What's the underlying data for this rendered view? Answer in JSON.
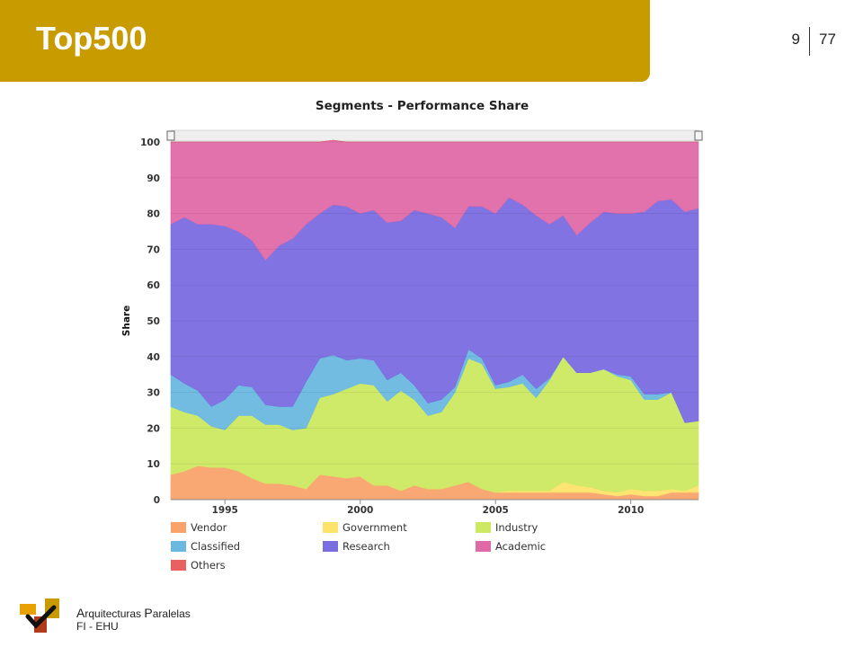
{
  "slide": {
    "title": "Top500",
    "number": "9",
    "total": "77"
  },
  "footer": {
    "line1_cap1": "A",
    "line1_rest1": "rquitecturas ",
    "line1_cap2": "P",
    "line1_rest2": "aralelas",
    "line2": "FI - EHU"
  },
  "chart_data": {
    "type": "area",
    "stacked": true,
    "title": "Segments - Performance Share",
    "xlabel": "",
    "ylabel": "Share",
    "ylim": [
      0,
      100
    ],
    "xlim": [
      1993,
      2012.5
    ],
    "yticks": [
      0,
      10,
      20,
      30,
      40,
      50,
      60,
      70,
      80,
      90,
      100
    ],
    "xticks": [
      1995,
      2000,
      2005,
      2010
    ],
    "grid": true,
    "legend_position": "bottom",
    "x": [
      1993,
      1993.5,
      1994,
      1994.5,
      1995,
      1995.5,
      1996,
      1996.5,
      1997,
      1997.5,
      1998,
      1998.5,
      1999,
      1999.5,
      2000,
      2000.5,
      2001,
      2001.5,
      2002,
      2002.5,
      2003,
      2003.5,
      2004,
      2004.5,
      2005,
      2005.5,
      2006,
      2006.5,
      2007,
      2007.5,
      2008,
      2008.5,
      2009,
      2009.5,
      2010,
      2010.5,
      2011,
      2011.5,
      2012,
      2012.5
    ],
    "series": [
      {
        "name": "Vendor",
        "color": "#f9a36b",
        "values": [
          7,
          8,
          9.5,
          9,
          9,
          8,
          6,
          4.5,
          4.5,
          4,
          3,
          7,
          6.5,
          6,
          6.5,
          4,
          4,
          2.5,
          4,
          3,
          3,
          4,
          5,
          3,
          2,
          2,
          2,
          2,
          2,
          2,
          2,
          2,
          1.5,
          1,
          1.5,
          1,
          1,
          2,
          2,
          2
        ]
      },
      {
        "name": "Government",
        "color": "#fee36a",
        "values": [
          0,
          0,
          0,
          0,
          0,
          0,
          0,
          0,
          0,
          0,
          0,
          0,
          0,
          0,
          0,
          0,
          0,
          0,
          0,
          0,
          0,
          0,
          0,
          0,
          0,
          0.5,
          0.5,
          0.5,
          0.5,
          3,
          2,
          1.5,
          1,
          1,
          1.5,
          1.5,
          1.5,
          1,
          0.5,
          2
        ]
      },
      {
        "name": "Industry",
        "color": "#cce961",
        "values": [
          19,
          16.5,
          14,
          11.5,
          10.5,
          15.5,
          17.5,
          16.5,
          16.5,
          15.5,
          17,
          21.5,
          23,
          25,
          26,
          28,
          23.5,
          28,
          24,
          20.5,
          21.5,
          26,
          34.5,
          35,
          29,
          29,
          30,
          26,
          31,
          35,
          31.5,
          32,
          34,
          32.5,
          30.5,
          25.5,
          25.5,
          27,
          19,
          18
        ]
      },
      {
        "name": "Classified",
        "color": "#6ab8e0",
        "values": [
          9,
          8,
          7,
          5.5,
          8.5,
          8.5,
          8,
          5.5,
          5,
          6.5,
          13,
          11,
          11,
          8,
          7,
          7,
          6,
          5,
          4,
          3.5,
          3.5,
          1.5,
          2.5,
          1.5,
          1,
          1.5,
          2.5,
          2.5,
          0.5,
          0,
          0,
          0,
          0,
          0.5,
          1,
          1.5,
          1.5,
          0,
          0,
          0
        ]
      },
      {
        "name": "Research",
        "color": "#7a6de0",
        "values": [
          42,
          46.5,
          46.5,
          51,
          48.5,
          43,
          41,
          40.5,
          45,
          47,
          44,
          40.5,
          42,
          43,
          40.5,
          42,
          44,
          42.5,
          49,
          53,
          51,
          44.5,
          40,
          42.5,
          48,
          51.5,
          47.5,
          48.5,
          43,
          39.5,
          38.5,
          42,
          44,
          45,
          45.5,
          51,
          54,
          54,
          59,
          59.5
        ]
      },
      {
        "name": "Academic",
        "color": "#e06aa8",
        "values": [
          23,
          21,
          23,
          23,
          23.5,
          25,
          27.5,
          33,
          29,
          27,
          23,
          20,
          18,
          18,
          20,
          19,
          22.5,
          22,
          19,
          20,
          21,
          24,
          18,
          18,
          20,
          15.5,
          17.5,
          20.5,
          23,
          20.5,
          26,
          22.5,
          19.5,
          20,
          20,
          19.5,
          16.5,
          16,
          19.5,
          18.5
        ]
      },
      {
        "name": "Others",
        "color": "#e86060",
        "values": [
          0,
          0,
          0,
          0,
          0,
          0,
          0,
          0,
          0,
          0,
          0,
          0,
          0,
          0,
          0,
          0,
          0,
          0,
          0,
          0,
          0,
          0,
          0,
          0,
          0,
          0,
          0,
          0,
          0,
          0,
          0,
          0,
          0,
          0,
          0,
          0,
          0,
          0,
          0,
          0
        ]
      }
    ]
  }
}
